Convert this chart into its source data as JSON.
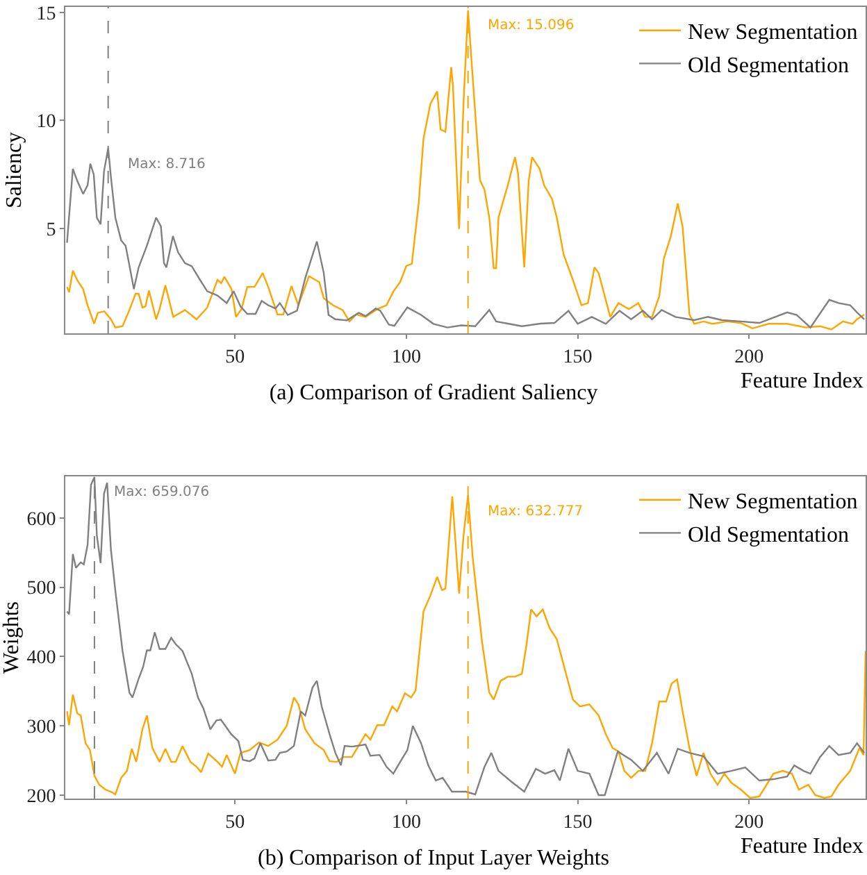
{
  "chart_data": [
    {
      "type": "line",
      "title": "(a) Comparison of Gradient Saliency",
      "xlabel": "Feature Index",
      "ylabel": "Saliency",
      "xlim": [
        0.5,
        234
      ],
      "xticks": [
        50,
        100,
        150,
        200
      ],
      "ylim": [
        0.15,
        15.25
      ],
      "yticks": [
        5,
        10,
        15
      ],
      "grid": false,
      "legend": "top right",
      "line_style": "solid",
      "marker": "none",
      "series": [
        {
          "name": "New Segmentation",
          "color": "#ffa500",
          "x": [
            1,
            1.6,
            2.7,
            4,
            5.7,
            7,
            8.9,
            10,
            11.9,
            13.8,
            15.1,
            17.2,
            19.2,
            21,
            21.9,
            23,
            23.9,
            24.9,
            27,
            28,
            29.7,
            32,
            35.4,
            38.8,
            41.9,
            44.9,
            46,
            46.9,
            49,
            50.3,
            51.9,
            53.6,
            55.7,
            58.1,
            59.7,
            62.4,
            64.1,
            66.5,
            68.5,
            71.6,
            74.6,
            75.9,
            78.6,
            81.4,
            83.4,
            85.4,
            88.1,
            91.5,
            94.2,
            96.2,
            98.2,
            100,
            101.6,
            103.6,
            105,
            107,
            109,
            110,
            111.4,
            113.1,
            113.6,
            115.4,
            116.7,
            118,
            119,
            121.5,
            122.8,
            124.2,
            125.5,
            126.2,
            126.9,
            129.6,
            131.7,
            132.6,
            134.4,
            135.7,
            136.7,
            138.9,
            140.2,
            142.5,
            143.9,
            145.9,
            148.6,
            151.1,
            153,
            154.9,
            156.1,
            159.5,
            161.9,
            164.9,
            167.7,
            169.7,
            171.7,
            173.8,
            175.1,
            177.2,
            179.2,
            180.6,
            182.6,
            184,
            186.7,
            189.4,
            193.5,
            197.6,
            201,
            205.7,
            211.1,
            216.6,
            220.7,
            224,
            227.4,
            230.2,
            231.5,
            233.6
          ],
          "values": [
            2.3,
            2.05,
            3.05,
            2.6,
            2.2,
            1.45,
            0.6,
            1.1,
            1.17,
            0.8,
            0.42,
            0.48,
            1.23,
            1.98,
            1.98,
            1.34,
            1.4,
            2.13,
            0.8,
            1.27,
            2.37,
            0.91,
            1.23,
            0.8,
            1.34,
            2.62,
            2.47,
            2.77,
            2.2,
            0.91,
            1.27,
            2.3,
            2.3,
            2.94,
            2.3,
            1.02,
            1.02,
            2.34,
            1.45,
            2.79,
            2.52,
            1.77,
            1.45,
            1.23,
            0.7,
            1.02,
            0.91,
            1.27,
            1.45,
            2.08,
            2.52,
            3.27,
            3.37,
            6.16,
            9.15,
            10.76,
            11.34,
            9.58,
            9.48,
            12.47,
            11.6,
            4.98,
            10.87,
            15.096,
            12.8,
            7.23,
            6.8,
            5.51,
            3.16,
            3.16,
            5.51,
            7.0,
            8.3,
            7.55,
            3.2,
            7.2,
            8.3,
            7.76,
            7.0,
            6.37,
            5.51,
            3.8,
            2.62,
            1.45,
            1.55,
            3.2,
            2.94,
            0.91,
            1.55,
            1.27,
            1.55,
            0.91,
            0.91,
            1.87,
            3.59,
            4.66,
            6.16,
            5.09,
            1.02,
            0.59,
            0.7,
            0.59,
            0.7,
            0.63,
            0.38,
            0.59,
            0.59,
            0.42,
            0.48,
            0.33,
            0.7,
            0.59,
            0.8,
            1.02
          ]
        },
        {
          "name": "Old Segmentation",
          "color": "#808080",
          "x": [
            1,
            2.7,
            4,
            5.7,
            7,
            7.8,
            8.8,
            9.7,
            10.8,
            11.8,
            13,
            13.8,
            15.1,
            16.8,
            18.1,
            19.2,
            20.5,
            21.9,
            24.3,
            27,
            28.4,
            29.3,
            30,
            31.9,
            33.4,
            35.4,
            37.4,
            39.5,
            41.9,
            44.9,
            47.6,
            49.6,
            51.6,
            53.6,
            56,
            57.8,
            59.7,
            61.8,
            63.1,
            65.4,
            68.1,
            70.5,
            73.9,
            75.9,
            77.3,
            79.3,
            82.7,
            86.1,
            88.1,
            91.1,
            92.4,
            94.9,
            96.5,
            100.3,
            104.3,
            107.9,
            112,
            116,
            120.1,
            124.2,
            126.2,
            129.6,
            133.7,
            139.1,
            143.2,
            147.3,
            150,
            154.1,
            158.2,
            162.2,
            165.6,
            169,
            171.7,
            174.5,
            178.5,
            184,
            188,
            192.1,
            197.6,
            203,
            211.1,
            213.9,
            217.9,
            223.4,
            226.1,
            229.5,
            231.5,
            233.6
          ],
          "values": [
            4.34,
            7.76,
            7.2,
            6.6,
            7.0,
            8.0,
            7.5,
            5.5,
            5.2,
            7.65,
            8.716,
            7.4,
            5.5,
            4.45,
            4.2,
            3.3,
            2.2,
            3.2,
            4.2,
            5.5,
            5.1,
            3.4,
            3.2,
            4.65,
            3.9,
            3.4,
            3.25,
            2.7,
            2.1,
            1.9,
            1.55,
            2.1,
            1.4,
            1.05,
            1.05,
            1.65,
            1.45,
            1.3,
            1.55,
            1.0,
            1.2,
            2.7,
            4.4,
            2.95,
            1.0,
            0.8,
            0.75,
            1.1,
            0.95,
            1.3,
            1.2,
            0.55,
            0.5,
            1.35,
            1.0,
            0.59,
            0.42,
            0.52,
            0.48,
            1.23,
            0.7,
            0.6,
            0.48,
            0.6,
            0.63,
            1.19,
            0.59,
            0.91,
            0.59,
            1.19,
            0.8,
            1.2,
            0.8,
            1.23,
            0.91,
            0.76,
            0.91,
            0.76,
            0.7,
            0.63,
            1.12,
            1.0,
            0.42,
            1.7,
            1.55,
            1.45,
            1.12,
            0.8
          ]
        }
      ],
      "annotations": [
        {
          "text": "Max: 8.716",
          "x": 13,
          "y": 8.716
        },
        {
          "text": "Max: 15.096",
          "x": 118,
          "y": 15.096
        }
      ],
      "ref_lines": [
        {
          "axis": "x",
          "value": 13,
          "color": "#808080",
          "line_style": "dashed"
        },
        {
          "axis": "x",
          "value": 118,
          "color": "#ffa500",
          "line_style": "dashed"
        }
      ]
    },
    {
      "type": "line",
      "title": "(b) Comparison of Input Layer Weights",
      "xlabel": "Feature Index",
      "ylabel": "Weights",
      "xlim": [
        0.5,
        234
      ],
      "xticks": [
        50,
        100,
        150,
        200
      ],
      "ylim": [
        195,
        660
      ],
      "yticks": [
        200,
        300,
        400,
        500,
        600
      ],
      "grid": false,
      "legend": "top right",
      "line_style": "solid",
      "marker": "none",
      "series": [
        {
          "name": "New Segmentation",
          "color": "#ffa500",
          "x": [
            1,
            1.6,
            2.7,
            4,
            5,
            6.4,
            7.7,
            9,
            10.4,
            12.2,
            13.8,
            15.1,
            16.8,
            18.5,
            19.9,
            21.2,
            23,
            24.3,
            25.9,
            28,
            29.7,
            31.4,
            32.7,
            34.7,
            37,
            38.8,
            40.1,
            42.2,
            44.9,
            46.2,
            47.6,
            50,
            51.6,
            54.3,
            57,
            59.7,
            62.4,
            65.1,
            67.2,
            68.5,
            70.5,
            73.2,
            75.9,
            77.6,
            79.7,
            81.6,
            84.1,
            88.1,
            89.5,
            91.5,
            93.5,
            95.9,
            97.3,
            99.6,
            101.4,
            102.7,
            105,
            107,
            109,
            110.4,
            111.4,
            113.4,
            115.4,
            116.7,
            118,
            119.4,
            122.1,
            124.2,
            125.5,
            127.5,
            129.6,
            131.7,
            133.7,
            135,
            136.4,
            138,
            139.8,
            141.8,
            143.9,
            145.9,
            148.6,
            150.7,
            153.4,
            156.1,
            158.2,
            160.2,
            161.9,
            163.6,
            165.6,
            167.7,
            169.7,
            171.7,
            173.8,
            175.8,
            177.4,
            179,
            180.6,
            182.6,
            184.7,
            186.7,
            188.7,
            190.8,
            192.8,
            194.8,
            197.6,
            200.3,
            203,
            207.1,
            209.8,
            212.5,
            214.5,
            217.3,
            219.3,
            222,
            224,
            226.1,
            229.5,
            232.2,
            233.4,
            234
          ],
          "values": [
            321,
            301,
            345,
            318,
            315,
            275,
            265,
            228,
            215,
            208,
            205,
            201,
            225,
            235,
            267,
            248,
            295,
            315,
            268,
            248,
            267,
            248,
            248,
            271,
            248,
            241,
            233,
            260,
            248,
            241,
            258,
            231,
            261,
            265,
            276,
            271,
            280,
            300,
            341,
            331,
            295,
            275,
            265,
            249,
            248,
            255,
            255,
            288,
            280,
            301,
            301,
            328,
            321,
            347,
            341,
            351,
            465,
            488,
            515,
            496,
            498,
            631,
            491,
            575,
            632.777,
            541,
            421,
            348,
            338,
            365,
            371,
            371,
            375,
            415,
            468,
            458,
            468,
            441,
            425,
            388,
            338,
            328,
            331,
            315,
            288,
            268,
            263,
            235,
            225,
            235,
            235,
            275,
            335,
            335,
            361,
            367,
            321,
            268,
            228,
            261,
            231,
            215,
            231,
            218,
            208,
            196,
            198,
            231,
            235,
            231,
            208,
            215,
            200,
            196,
            198,
            215,
            235,
            268,
            258,
            408
          ]
        },
        {
          "name": "Old Segmentation",
          "color": "#808080",
          "x": [
            1,
            1.6,
            2.7,
            3.6,
            5,
            5.9,
            7,
            8,
            9,
            9.7,
            10.8,
            11.8,
            12.7,
            13.8,
            15.1,
            17.2,
            19.2,
            20.1,
            21.9,
            23.2,
            24.3,
            25.3,
            26.6,
            28,
            29.7,
            31.4,
            32.7,
            34.7,
            37.4,
            39.2,
            40.8,
            42.8,
            44.6,
            45.9,
            48.9,
            51,
            52.3,
            54.3,
            55.7,
            57.4,
            59.7,
            61.8,
            63.1,
            65.1,
            67.2,
            69.2,
            70.5,
            72.6,
            73.9,
            75.3,
            77.6,
            79.3,
            80.9,
            82,
            84.1,
            88.1,
            89.5,
            92.2,
            94.2,
            96.2,
            98.2,
            100.3,
            101.9,
            104.3,
            106.4,
            108.6,
            110.6,
            113.3,
            117.4,
            120.1,
            122.8,
            124.8,
            126.9,
            131,
            134.4,
            137.8,
            140.5,
            143.2,
            144.8,
            147.3,
            150,
            153.4,
            156.1,
            157.9,
            161.7,
            165.6,
            169,
            173.1,
            176.5,
            179.2,
            182.6,
            186.7,
            190.8,
            194.8,
            198.9,
            203,
            207.1,
            211.1,
            213.2,
            215.9,
            217.9,
            220.7,
            223.4,
            226.1,
            229.5,
            231.5,
            233.6
          ],
          "values": [
            465,
            461,
            548,
            528,
            536,
            533,
            561,
            648,
            659.076,
            575,
            535,
            635,
            651,
            555,
            495,
            408,
            348,
            341,
            368,
            385,
            409,
            409,
            435,
            411,
            411,
            427,
            418,
            408,
            375,
            341,
            325,
            295,
            308,
            309,
            288,
            278,
            251,
            249,
            253,
            275,
            250,
            251,
            261,
            263,
            271,
            321,
            315,
            355,
            365,
            328,
            288,
            261,
            243,
            271,
            270,
            273,
            257,
            258,
            241,
            231,
            248,
            265,
            300,
            275,
            243,
            221,
            225,
            205,
            205,
            201,
            241,
            261,
            235,
            218,
            205,
            238,
            231,
            236,
            221,
            267,
            235,
            231,
            200,
            200,
            263,
            251,
            235,
            261,
            231,
            267,
            261,
            256,
            231,
            235,
            240,
            221,
            223,
            227,
            243,
            235,
            231,
            255,
            271,
            258,
            261,
            275,
            261
          ]
        }
      ],
      "annotations": [
        {
          "text": "Max: 659.076",
          "x": 9,
          "y": 659.076
        },
        {
          "text": "Max: 632.777",
          "x": 118,
          "y": 632.777
        }
      ],
      "ref_lines": [
        {
          "axis": "x",
          "value": 9,
          "color": "#808080",
          "line_style": "dashed"
        },
        {
          "axis": "x",
          "value": 118,
          "color": "#ffa500",
          "line_style": "dashed"
        }
      ]
    }
  ]
}
